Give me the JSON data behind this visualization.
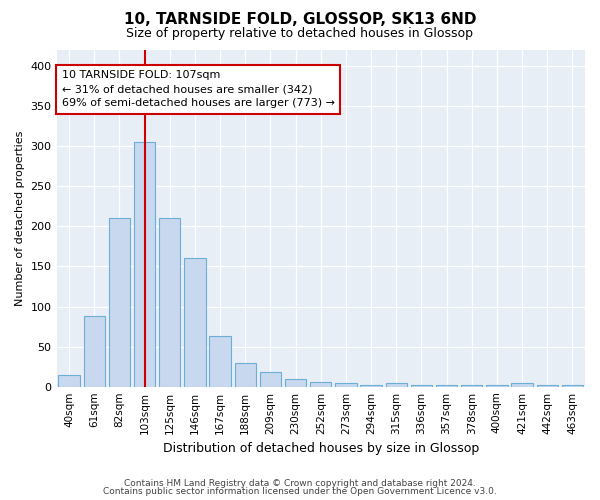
{
  "title1": "10, TARNSIDE FOLD, GLOSSOP, SK13 6ND",
  "title2": "Size of property relative to detached houses in Glossop",
  "xlabel": "Distribution of detached houses by size in Glossop",
  "ylabel": "Number of detached properties",
  "categories": [
    "40sqm",
    "61sqm",
    "82sqm",
    "103sqm",
    "125sqm",
    "146sqm",
    "167sqm",
    "188sqm",
    "209sqm",
    "230sqm",
    "252sqm",
    "273sqm",
    "294sqm",
    "315sqm",
    "336sqm",
    "357sqm",
    "378sqm",
    "400sqm",
    "421sqm",
    "442sqm",
    "463sqm"
  ],
  "values": [
    15,
    88,
    210,
    305,
    210,
    160,
    63,
    30,
    18,
    10,
    6,
    4,
    2,
    4,
    2,
    2,
    2,
    2,
    4,
    2,
    2
  ],
  "bar_color": "#c8d8ee",
  "bar_edge_color": "#6baed6",
  "vline_x_idx": 3,
  "vline_color": "#cc0000",
  "annotation_line1": "10 TARNSIDE FOLD: 107sqm",
  "annotation_line2": "← 31% of detached houses are smaller (342)",
  "annotation_line3": "69% of semi-detached houses are larger (773) →",
  "annotation_box_color": "#ffffff",
  "annotation_box_edge": "#cc0000",
  "ylim": [
    0,
    420
  ],
  "yticks": [
    0,
    50,
    100,
    150,
    200,
    250,
    300,
    350,
    400
  ],
  "background_color": "#e8eef6",
  "grid_color": "#ffffff",
  "fig_bg": "#ffffff",
  "footer1": "Contains HM Land Registry data © Crown copyright and database right 2024.",
  "footer2": "Contains public sector information licensed under the Open Government Licence v3.0.",
  "title1_fontsize": 11,
  "title2_fontsize": 9,
  "ylabel_fontsize": 8,
  "xlabel_fontsize": 9
}
